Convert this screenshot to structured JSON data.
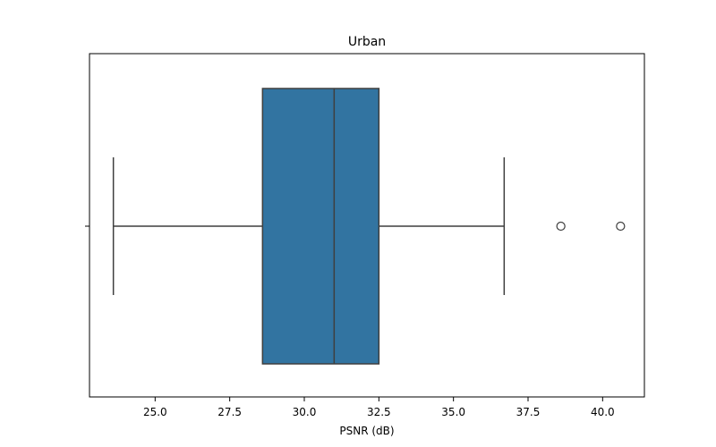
{
  "chart_data": {
    "type": "box",
    "title": "Urban",
    "xlabel": "PSNR (dB)",
    "ylabel": "",
    "orientation": "horizontal",
    "xlim": [
      22.8,
      41.4
    ],
    "xticks": [
      25.0,
      27.5,
      30.0,
      32.5,
      35.0,
      37.5,
      40.0
    ],
    "xtick_labels": [
      "25.0",
      "27.5",
      "30.0",
      "32.5",
      "35.0",
      "37.5",
      "40.0"
    ],
    "grid": false,
    "legend": "none",
    "box": {
      "whisker_low": 23.6,
      "q1": 28.6,
      "median": 31.0,
      "q3": 32.5,
      "whisker_high": 36.7,
      "outliers": [
        38.6,
        40.6
      ]
    },
    "colors": {
      "box_fill": "#3274a1",
      "line": "#3f3f3f",
      "frame": "#000000"
    }
  }
}
